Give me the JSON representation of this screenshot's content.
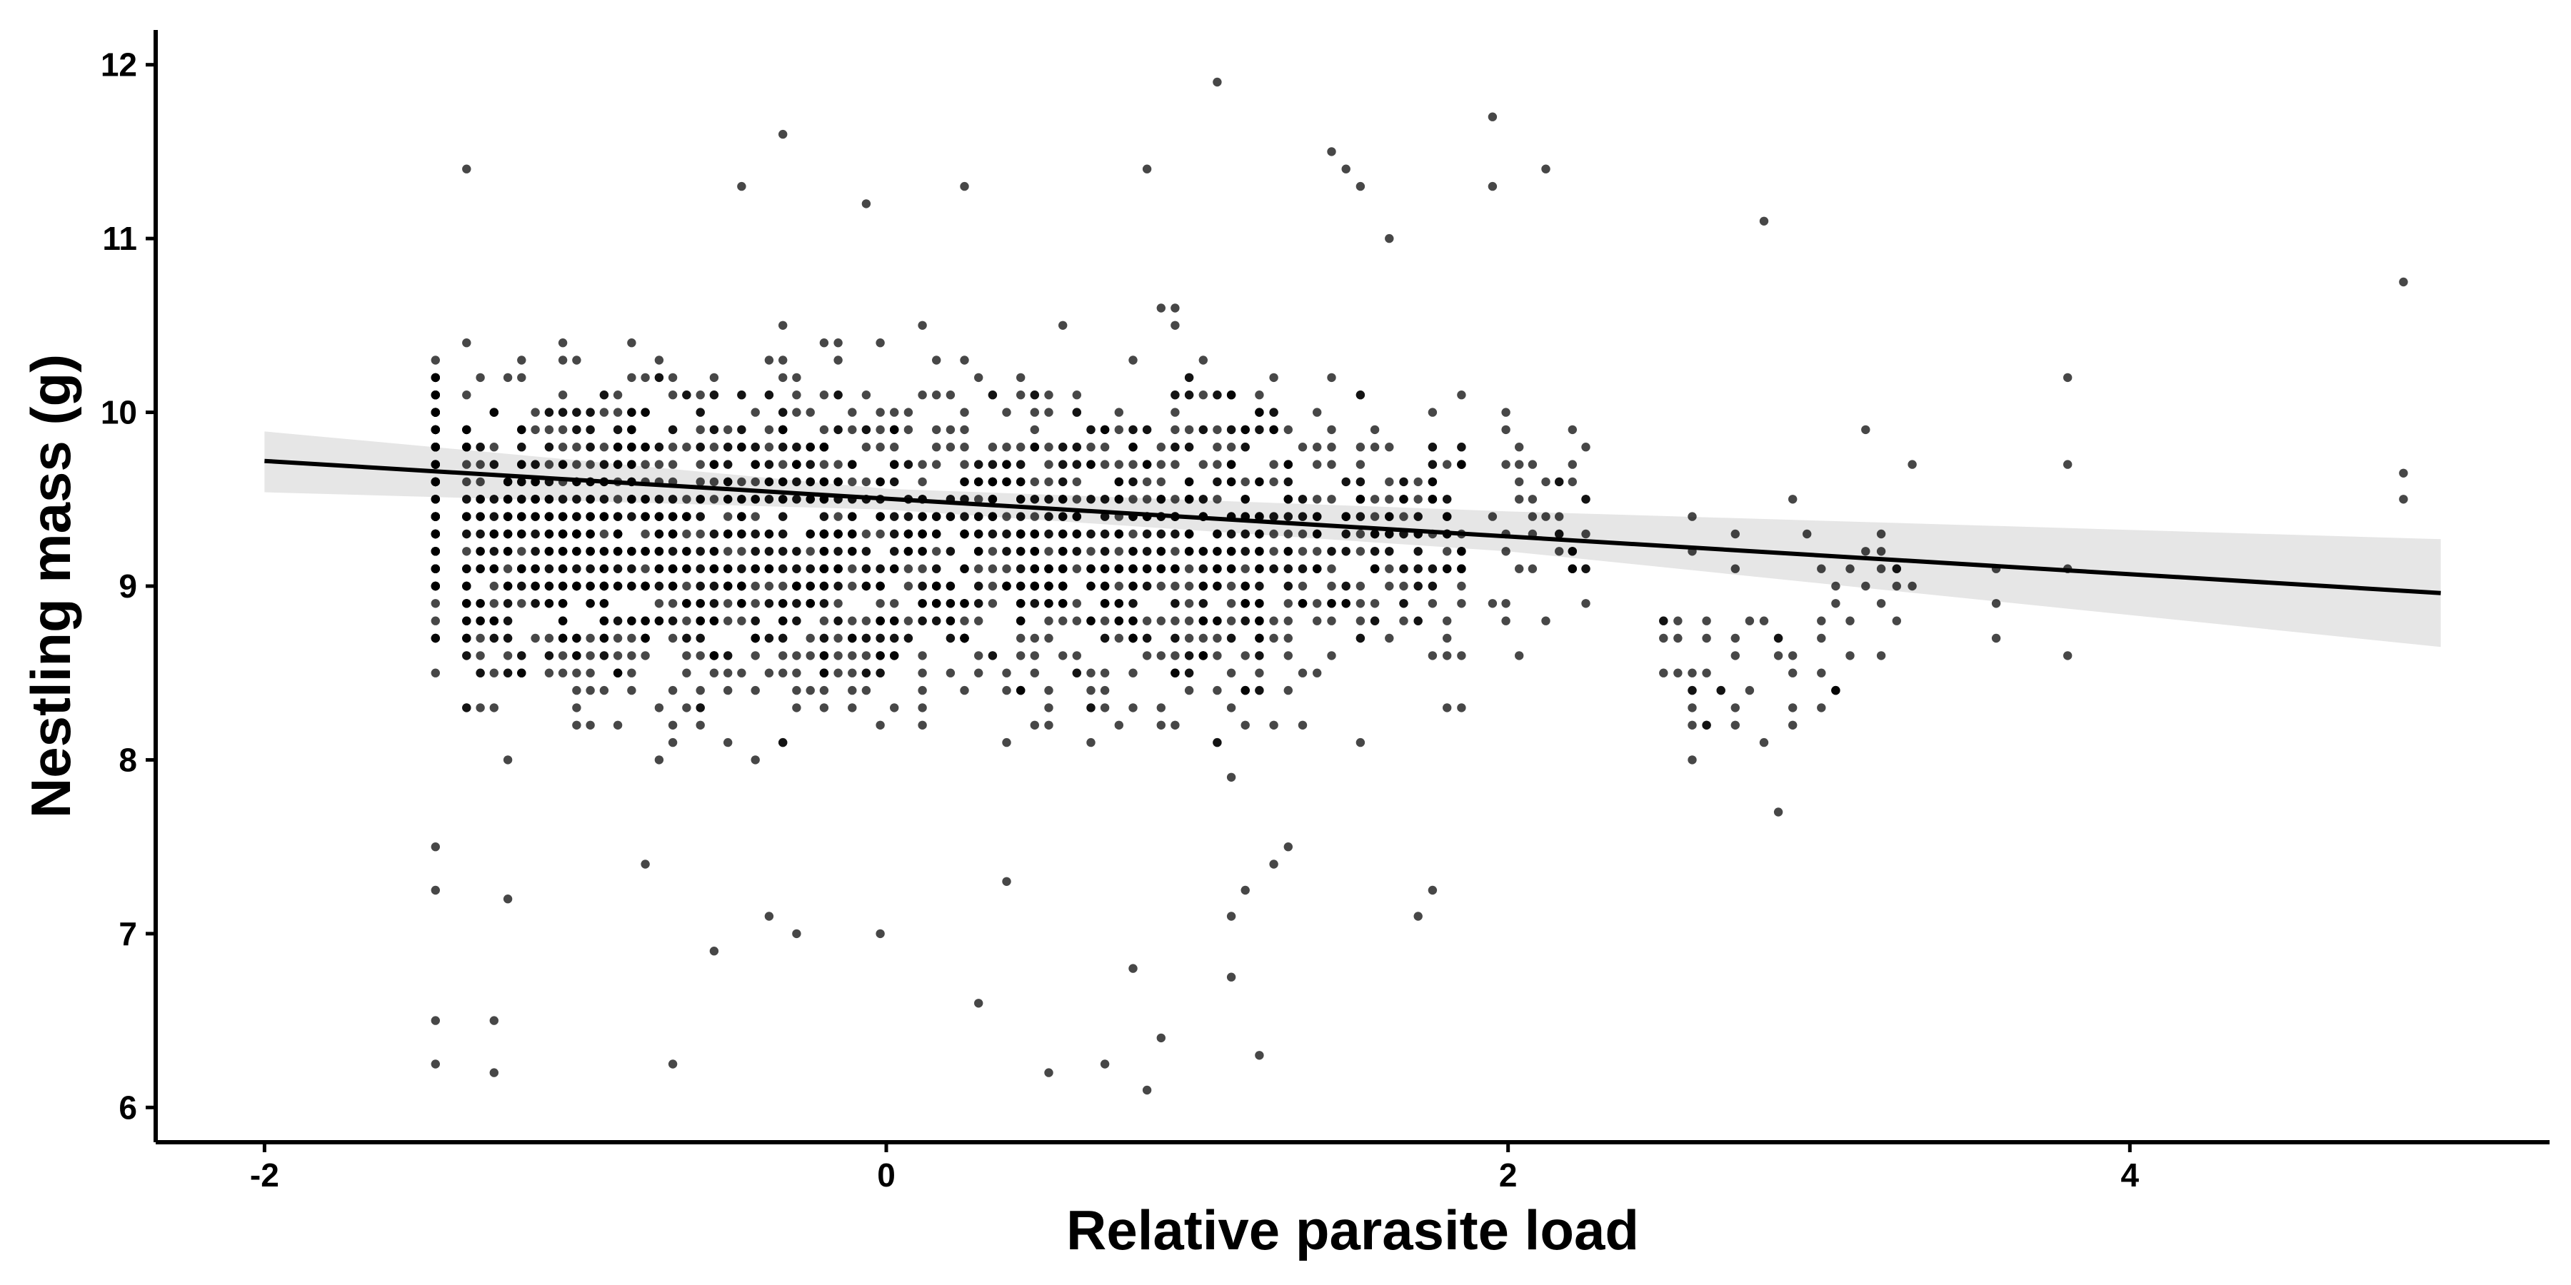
{
  "chart_data": {
    "type": "scatter",
    "title": "",
    "xlabel": "Relative parasite load",
    "ylabel": "Nestling mass (g)",
    "xlim": [
      -2.35,
      5.35
    ],
    "ylim": [
      5.8,
      12.2
    ],
    "x_ticks": [
      -2,
      0,
      2,
      4
    ],
    "x_tick_labels": [
      "-2",
      "0",
      "2",
      "4"
    ],
    "y_ticks": [
      6,
      7,
      8,
      9,
      10,
      11,
      12
    ],
    "y_tick_labels": [
      "6",
      "7",
      "8",
      "9",
      "10",
      "11",
      "12"
    ],
    "grid": false,
    "legend": "none",
    "point_color": "#000000",
    "point_opacity": 0.72,
    "fit_line": {
      "x": [
        -2,
        5
      ],
      "y": [
        9.72,
        8.96
      ],
      "color": "#000000"
    },
    "confidence_band": {
      "x": [
        -2,
        0,
        2,
        5
      ],
      "lower": [
        9.54,
        9.44,
        9.2,
        8.65
      ],
      "upper": [
        9.89,
        9.56,
        9.43,
        9.27
      ],
      "color": "#e6e6e6"
    },
    "clusters": [
      {
        "x": -1.45,
        "count": 95,
        "y_min": 7.7,
        "y_max": 11.2,
        "extra_y": [
          6.25,
          6.5,
          7.25,
          7.5
        ]
      },
      {
        "x_range": [
          -1.35,
          -0.2
        ],
        "count": 950,
        "y_min": 7.6,
        "y_max": 10.9,
        "extra_y": [
          6.5,
          6.9,
          7.0,
          7.1,
          7.2,
          7.4,
          11.3,
          11.4,
          11.6,
          6.2,
          6.25
        ]
      },
      {
        "x_range": [
          -0.2,
          1.2
        ],
        "count": 950,
        "y_min": 7.6,
        "y_max": 10.9,
        "extra_y": [
          6.1,
          6.2,
          6.25,
          6.3,
          6.4,
          6.6,
          6.75,
          6.8,
          7.0,
          7.1,
          7.25,
          7.3,
          11.2,
          11.3,
          11.4,
          11.9
        ]
      },
      {
        "x_range": [
          1.2,
          1.85
        ],
        "count": 260,
        "y_min": 7.8,
        "y_max": 10.8,
        "extra_y": [
          7.1,
          7.25,
          7.4,
          7.5,
          11.0,
          11.3,
          11.4,
          11.5
        ]
      },
      {
        "x_range": [
          1.95,
          2.25
        ],
        "count": 45,
        "y_min": 8.1,
        "y_max": 10.6,
        "extra_y": [
          11.3,
          11.4,
          11.7
        ]
      },
      {
        "x_range": [
          2.5,
          3.1
        ],
        "count": 55,
        "y_min": 7.5,
        "y_max": 10.0,
        "extra_y": [
          11.1
        ]
      },
      {
        "x_range": [
          3.15,
          3.3
        ],
        "count": 14,
        "y_min": 8.0,
        "y_max": 10.5,
        "extra_y": []
      }
    ],
    "points": [
      {
        "x": 3.57,
        "y": 8.7
      },
      {
        "x": 3.57,
        "y": 8.9
      },
      {
        "x": 3.57,
        "y": 9.1
      },
      {
        "x": 3.8,
        "y": 8.6
      },
      {
        "x": 3.8,
        "y": 9.1
      },
      {
        "x": 3.8,
        "y": 9.7
      },
      {
        "x": 3.8,
        "y": 10.2
      },
      {
        "x": 4.88,
        "y": 9.5
      },
      {
        "x": 4.88,
        "y": 9.65
      },
      {
        "x": 4.88,
        "y": 10.75
      }
    ]
  }
}
